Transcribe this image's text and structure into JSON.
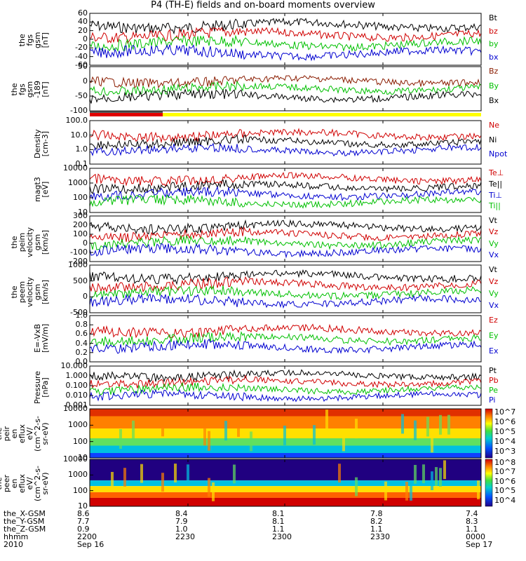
{
  "title": "P4 (TH-E) fields and on-board moments overview",
  "panels": [
    {
      "id": "fgs",
      "ylabel": "the\nfgs\ngsm\n[nT]",
      "yticks": [
        "60",
        "40",
        "20",
        "0",
        "-20",
        "-40",
        "-60"
      ],
      "legend": [
        [
          "Bt",
          "#000000"
        ],
        [
          "bz",
          "#d00000"
        ],
        [
          "by",
          "#00c000"
        ],
        [
          "bx",
          "#0000d0"
        ]
      ]
    },
    {
      "id": "fgs_rot",
      "ylabel": "the\nfgs\ngsm\n-189\n[nT]",
      "yticks": [
        "50",
        "0",
        "-50",
        "-100"
      ],
      "legend": [
        [
          "Bz",
          "#8a1c00"
        ],
        [
          "By",
          "#00c000"
        ],
        [
          "Bx",
          "#000000"
        ]
      ]
    },
    {
      "id": "bar",
      "ylabel": "",
      "yticks": [],
      "legend": []
    },
    {
      "id": "density",
      "ylabel": "Density\n[cm-3]",
      "yticks": [
        "100.0",
        "10.0",
        "1.0",
        "0.1"
      ],
      "legend": [
        [
          "Ne",
          "#d00000"
        ],
        [
          "Ni",
          "#000000"
        ],
        [
          "Npot",
          "#0000d0"
        ]
      ]
    },
    {
      "id": "temp",
      "ylabel": "magt3\n[eV]",
      "yticks": [
        "10000",
        "1000",
        "100",
        "10"
      ],
      "legend": [
        [
          "Te⊥",
          "#d00000"
        ],
        [
          "Te||",
          "#000000"
        ],
        [
          "Ti⊥",
          "#0000d0"
        ],
        [
          "Ti||",
          "#00c000"
        ]
      ]
    },
    {
      "id": "peim_vel",
      "ylabel": "the\npeim\nvelocity\ngsm\n[km/s]",
      "yticks": [
        "300",
        "200",
        "100",
        "0",
        "-100",
        "-200"
      ],
      "legend": [
        [
          "Vt",
          "#000000"
        ],
        [
          "Vz",
          "#d00000"
        ],
        [
          "Vy",
          "#00c000"
        ],
        [
          "Vx",
          "#0000d0"
        ]
      ]
    },
    {
      "id": "peem_vel",
      "ylabel": "the\npeem\nvelocity\ngsm\n[km/s]",
      "yticks": [
        "1000",
        "500",
        "0",
        "-500"
      ],
      "legend": [
        [
          "Vt",
          "#000000"
        ],
        [
          "Vz",
          "#d00000"
        ],
        [
          "Vy",
          "#00c000"
        ],
        [
          "Vx",
          "#0000d0"
        ]
      ]
    },
    {
      "id": "efield",
      "ylabel": "E=-VxB\n[mV/m]",
      "yticks": [
        "1.0",
        "0.8",
        "0.6",
        "0.4",
        "0.2",
        "0.0"
      ],
      "legend": [
        [
          "Ez",
          "#d00000"
        ],
        [
          "Ey",
          "#00c000"
        ],
        [
          "Ex",
          "#0000d0"
        ]
      ]
    },
    {
      "id": "pressure",
      "ylabel": "Pressure\n[nPa]",
      "yticks": [
        "10.000",
        "1.000",
        "0.100",
        "0.010",
        "0.001"
      ],
      "legend": [
        [
          "Pt",
          "#000000"
        ],
        [
          "Pb",
          "#d00000"
        ],
        [
          "Pe",
          "#00c000"
        ],
        [
          "Pi",
          "#0000d0"
        ]
      ]
    },
    {
      "id": "peir",
      "ylabel": "the\npeir\nen\neflux\neV/\n(cm^2-s-\nsr-eV)",
      "yticks": [
        "10000",
        "1000",
        "100",
        "10"
      ],
      "legend": [],
      "colorbar": [
        "10^7",
        "10^6",
        "10^5",
        "10^4",
        "10^3"
      ]
    },
    {
      "id": "peer",
      "ylabel": "the\npeer\nen\neflux\neV/\n(cm^2-s-\nsr-eV)",
      "yticks": [
        "10000",
        "1000",
        "100",
        "10"
      ],
      "legend": [],
      "colorbar": [
        "10^8",
        "10^7",
        "10^6",
        "10^5",
        "10^4"
      ]
    }
  ],
  "bottom": {
    "row_labels": [
      "the_X-GSM",
      "the_Y-GSM",
      "the_Z-GSM",
      "hhmm",
      "2010"
    ],
    "columns": [
      [
        "8.6",
        "7.7",
        "0.9",
        "2200",
        "Sep 16"
      ],
      [
        "8.4",
        "7.9",
        "1.0",
        "2230",
        ""
      ],
      [
        "8.1",
        "8.1",
        "1.1",
        "2300",
        ""
      ],
      [
        "7.8",
        "8.2",
        "1.1",
        "2330",
        ""
      ],
      [
        "7.4",
        "8.3",
        "1.1",
        "0000",
        "Sep 17"
      ]
    ]
  }
}
